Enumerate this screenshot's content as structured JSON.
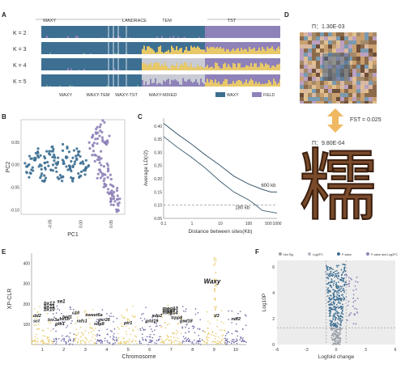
{
  "panels": {
    "A": "A",
    "B": "B",
    "C": "C",
    "D": "D",
    "E": "E",
    "F": "F"
  },
  "panel_a": {
    "top_groups": [
      "WAXY",
      "LANDRACE",
      "TEM",
      "TST"
    ],
    "rows": [
      "K = 2",
      "K = 3",
      "K = 4",
      "K = 5"
    ],
    "bottom_groups": [
      "WAXY",
      "WAXY-TEM",
      "WAXY-TST",
      "WAXY-MIXED"
    ],
    "legend": [
      {
        "label": "WAXY",
        "color": "#3d6f92"
      },
      {
        "label": "FIELD",
        "color": "#8f82b8"
      }
    ],
    "colors": {
      "blue": "#3d6f92",
      "purple": "#8f82b8",
      "yellow": "#e8c96a",
      "grey": "#c9ccd4",
      "teal": "#5e9a9a"
    }
  },
  "panel_d": {
    "pi_top": "Π：1.30E-03",
    "fst": "FST = 0.025",
    "pi_bottom": "Π：9.80E-04",
    "glyph": "糯"
  },
  "chart_data": [
    {
      "panel": "B",
      "type": "scatter",
      "xlabel": "PC1",
      "ylabel": "PC2",
      "xticks": [
        "-0.05",
        "0.00",
        "0.05"
      ],
      "yticks": [
        "0.05",
        "0.00",
        "-0.05",
        "-0.10"
      ],
      "xlim": [
        -0.1,
        0.07
      ],
      "ylim": [
        -0.11,
        0.1
      ],
      "series": [
        {
          "color": "#3d6f92",
          "points": [
            [
              -0.09,
              0.0
            ],
            [
              -0.085,
              0.01
            ],
            [
              -0.08,
              -0.01
            ],
            [
              -0.075,
              0.02
            ],
            [
              -0.07,
              0.0
            ],
            [
              -0.065,
              -0.02
            ],
            [
              -0.06,
              0.01
            ],
            [
              -0.055,
              0.03
            ],
            [
              -0.05,
              -0.01
            ],
            [
              -0.045,
              0.02
            ],
            [
              -0.04,
              0.0
            ],
            [
              -0.035,
              -0.03
            ],
            [
              -0.03,
              0.01
            ],
            [
              -0.025,
              0.02
            ],
            [
              -0.02,
              -0.01
            ],
            [
              -0.015,
              0.0
            ],
            [
              -0.01,
              0.03
            ],
            [
              -0.005,
              -0.02
            ],
            [
              0.0,
              0.01
            ],
            [
              0.005,
              0.0
            ],
            [
              0.01,
              -0.01
            ],
            [
              -0.088,
              -0.02
            ],
            [
              -0.072,
              0.03
            ],
            [
              -0.062,
              -0.03
            ],
            [
              -0.048,
              0.04
            ],
            [
              -0.038,
              -0.02
            ],
            [
              -0.028,
              0.04
            ],
            [
              -0.018,
              -0.03
            ],
            [
              -0.008,
              0.02
            ],
            [
              0.002,
              -0.02
            ],
            [
              -0.078,
              0.01
            ],
            [
              -0.058,
              0.0
            ],
            [
              -0.042,
              0.01
            ],
            [
              -0.022,
              0.0
            ],
            [
              -0.012,
              0.01
            ]
          ]
        },
        {
          "color": "#8f82b8",
          "points": [
            [
              0.02,
              0.06
            ],
            [
              0.025,
              0.08
            ],
            [
              0.03,
              0.07
            ],
            [
              0.035,
              0.05
            ],
            [
              0.02,
              0.03
            ],
            [
              0.025,
              0.01
            ],
            [
              0.03,
              -0.01
            ],
            [
              0.035,
              -0.03
            ],
            [
              0.04,
              -0.05
            ],
            [
              0.045,
              -0.07
            ],
            [
              0.05,
              -0.08
            ],
            [
              0.055,
              -0.09
            ],
            [
              0.04,
              0.04
            ],
            [
              0.03,
              0.02
            ],
            [
              0.04,
              0.0
            ],
            [
              0.045,
              -0.02
            ],
            [
              0.05,
              -0.04
            ],
            [
              0.055,
              -0.06
            ],
            [
              0.06,
              -0.08
            ],
            [
              0.022,
              0.05
            ],
            [
              0.033,
              0.09
            ],
            [
              0.028,
              -0.02
            ],
            [
              0.038,
              -0.04
            ],
            [
              0.048,
              -0.06
            ],
            [
              0.058,
              -0.1
            ],
            [
              0.015,
              0.04
            ],
            [
              0.042,
              0.06
            ],
            [
              0.052,
              -0.07
            ]
          ]
        }
      ]
    },
    {
      "panel": "C",
      "type": "line",
      "xlabel": "Distance between sites(Kb)",
      "ylabel": "Average LD(r2)",
      "xticks": [
        "0.1",
        "1",
        "10",
        "100",
        "500",
        "1000"
      ],
      "yticks": [
        "0.40",
        "0.35",
        "0.30",
        "0.25",
        "0.20",
        "0.15",
        "0.10",
        "0.05"
      ],
      "ylim": [
        0.05,
        0.43
      ],
      "xscale": "log",
      "series": [
        {
          "name": "600 kb",
          "x": [
            0.1,
            0.3,
            1,
            3,
            10,
            30,
            100,
            300,
            600,
            1000
          ],
          "y": [
            0.41,
            0.37,
            0.33,
            0.29,
            0.25,
            0.21,
            0.18,
            0.16,
            0.15,
            0.15
          ]
        },
        {
          "name": "180 kb",
          "x": [
            0.1,
            0.3,
            1,
            3,
            10,
            30,
            100,
            180,
            300,
            1000
          ],
          "y": [
            0.36,
            0.32,
            0.28,
            0.24,
            0.19,
            0.15,
            0.12,
            0.1,
            0.08,
            0.07
          ]
        }
      ],
      "dashed_line": 0.1,
      "annotations": [
        "600 kb",
        "180 kb"
      ]
    },
    {
      "panel": "E",
      "type": "scatter",
      "xlabel": "Chromosome",
      "ylabel": "XP-CLR",
      "yticks": [
        "400",
        "300",
        "200",
        "100"
      ],
      "ylim": [
        0,
        450
      ],
      "categories": [
        "1",
        "2",
        "3",
        "4",
        "5",
        "6",
        "7",
        "8",
        "9",
        "10"
      ],
      "colors": {
        "odd": "#e8c96a",
        "even": "#6f6aa6"
      },
      "gene_labels": [
        "Waxy",
        "bx12",
        "bx11",
        "bx10",
        "dd2",
        "lox3a",
        "brd1",
        "c10",
        "sct",
        "se1",
        "bz1b",
        "rafs1",
        "sweet6a",
        "gsr26",
        "sdp8",
        "ptr1",
        "gtb1",
        "meg13",
        "meg7",
        "meg14",
        "sdp2",
        "gsd19",
        "trpp8",
        "gsd18",
        "d3",
        "ndf2"
      ],
      "gene_xpclr": {
        "Waxy": 260,
        "bx12": 180,
        "bx11": 170,
        "bx10": 160,
        "dd2": 130,
        "se1": 200,
        "meg13": 170,
        "meg7": 160,
        "meg14": 150,
        "d3": 115
      }
    },
    {
      "panel": "F",
      "type": "scatter",
      "xlabel": "Logfold change",
      "ylabel": "Log10P",
      "xticks": [
        "-6",
        "-3",
        "0",
        "3",
        "6"
      ],
      "yticks": [
        "6",
        "4",
        "2",
        "0"
      ],
      "xlim": [
        -6,
        6
      ],
      "ylim": [
        0,
        6.5
      ],
      "legend": [
        "Not Sig",
        "Log2FC",
        "P-value",
        "P-value and Log2FC"
      ],
      "legend_colors": [
        "#9aa0a6",
        "#b8b8c8",
        "#3d6f92",
        "#8f82b8"
      ]
    }
  ]
}
